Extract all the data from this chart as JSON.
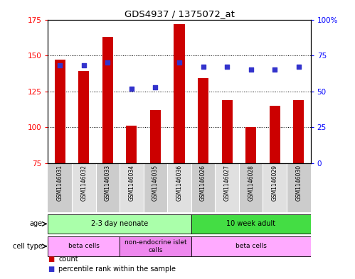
{
  "title": "GDS4937 / 1375072_at",
  "samples": [
    "GSM1146031",
    "GSM1146032",
    "GSM1146033",
    "GSM1146034",
    "GSM1146035",
    "GSM1146036",
    "GSM1146026",
    "GSM1146027",
    "GSM1146028",
    "GSM1146029",
    "GSM1146030"
  ],
  "counts": [
    147,
    139,
    163,
    101,
    112,
    172,
    134,
    119,
    100,
    115,
    119
  ],
  "percentile_ranks": [
    68,
    68,
    70,
    52,
    53,
    70,
    67,
    67,
    65,
    65,
    67
  ],
  "y_min": 75,
  "y_max": 175,
  "y_ticks": [
    75,
    100,
    125,
    150,
    175
  ],
  "y2_ticks": [
    0,
    25,
    50,
    75,
    100
  ],
  "y2_labels": [
    "0",
    "25",
    "50",
    "75",
    "100%"
  ],
  "bar_color": "#cc0000",
  "dot_color": "#3333cc",
  "age_groups": [
    {
      "label": "2-3 day neonate",
      "start": 0,
      "end": 6,
      "color": "#aaffaa"
    },
    {
      "label": "10 week adult",
      "start": 6,
      "end": 11,
      "color": "#44dd44"
    }
  ],
  "cell_type_groups": [
    {
      "label": "beta cells",
      "start": 0,
      "end": 3,
      "color": "#ffaaff"
    },
    {
      "label": "non-endocrine islet\ncells",
      "start": 3,
      "end": 6,
      "color": "#ee88ee"
    },
    {
      "label": "beta cells",
      "start": 6,
      "end": 11,
      "color": "#ffaaff"
    }
  ],
  "legend_red_label": "count",
  "legend_blue_label": "percentile rank within the sample",
  "age_label": "age",
  "cell_type_label": "cell type"
}
